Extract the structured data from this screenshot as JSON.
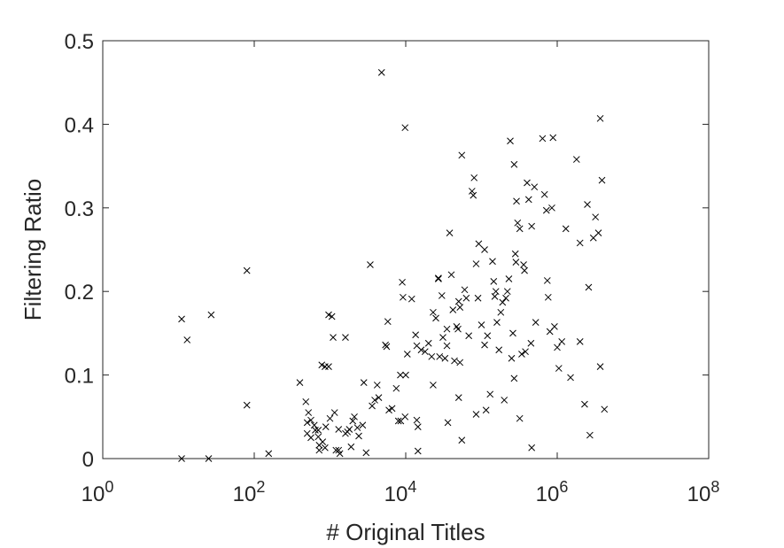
{
  "chart_data": {
    "type": "scatter",
    "title": "",
    "xlabel": "# Original Titles",
    "ylabel": "Filtering Ratio",
    "xscale": "log",
    "xlim": [
      1,
      100000000
    ],
    "ylim": [
      0,
      0.5
    ],
    "xticks": [
      {
        "value": 1,
        "base": "10",
        "exp": "0"
      },
      {
        "value": 100,
        "base": "10",
        "exp": "2"
      },
      {
        "value": 10000,
        "base": "10",
        "exp": "4"
      },
      {
        "value": 1000000,
        "base": "10",
        "exp": "6"
      },
      {
        "value": 100000000,
        "base": "10",
        "exp": "8"
      }
    ],
    "yticks": [
      {
        "value": 0,
        "label": "0"
      },
      {
        "value": 0.1,
        "label": "0.1"
      },
      {
        "value": 0.2,
        "label": "0.2"
      },
      {
        "value": 0.3,
        "label": "0.3"
      },
      {
        "value": 0.4,
        "label": "0.4"
      },
      {
        "value": 0.5,
        "label": "0.5"
      }
    ],
    "grid": false,
    "marker": "x",
    "marker_color": "#000000",
    "points": [
      [
        11,
        0.167
      ],
      [
        13,
        0.142
      ],
      [
        11,
        0.0
      ],
      [
        27,
        0.172
      ],
      [
        25,
        0.0
      ],
      [
        80,
        0.225
      ],
      [
        80,
        0.064
      ],
      [
        155,
        0.006
      ],
      [
        400,
        0.091
      ],
      [
        480,
        0.068
      ],
      [
        520,
        0.055
      ],
      [
        500,
        0.043
      ],
      [
        560,
        0.046
      ],
      [
        620,
        0.04
      ],
      [
        500,
        0.03
      ],
      [
        560,
        0.025
      ],
      [
        640,
        0.034
      ],
      [
        700,
        0.034
      ],
      [
        700,
        0.026
      ],
      [
        720,
        0.016
      ],
      [
        720,
        0.01
      ],
      [
        800,
        0.02
      ],
      [
        860,
        0.013
      ],
      [
        880,
        0.038
      ],
      [
        780,
        0.112
      ],
      [
        860,
        0.11
      ],
      [
        960,
        0.11
      ],
      [
        960,
        0.172
      ],
      [
        1060,
        0.17
      ],
      [
        1100,
        0.145
      ],
      [
        1000,
        0.048
      ],
      [
        1150,
        0.055
      ],
      [
        1300,
        0.035
      ],
      [
        1200,
        0.01
      ],
      [
        1300,
        0.01
      ],
      [
        1350,
        0.006
      ],
      [
        1600,
        0.145
      ],
      [
        1600,
        0.03
      ],
      [
        1700,
        0.032
      ],
      [
        1800,
        0.035
      ],
      [
        2000,
        0.045
      ],
      [
        2100,
        0.05
      ],
      [
        1900,
        0.014
      ],
      [
        2300,
        0.037
      ],
      [
        2400,
        0.027
      ],
      [
        2700,
        0.04
      ],
      [
        2800,
        0.091
      ],
      [
        3000,
        0.007
      ],
      [
        3400,
        0.232
      ],
      [
        3600,
        0.063
      ],
      [
        3900,
        0.07
      ],
      [
        4200,
        0.088
      ],
      [
        4400,
        0.073
      ],
      [
        4800,
        0.462
      ],
      [
        5400,
        0.136
      ],
      [
        5800,
        0.164
      ],
      [
        5600,
        0.134
      ],
      [
        6000,
        0.058
      ],
      [
        6600,
        0.06
      ],
      [
        7500,
        0.084
      ],
      [
        8000,
        0.045
      ],
      [
        8600,
        0.045
      ],
      [
        8500,
        0.1
      ],
      [
        9000,
        0.211
      ],
      [
        9200,
        0.193
      ],
      [
        9800,
        0.396
      ],
      [
        9800,
        0.05
      ],
      [
        10000,
        0.1
      ],
      [
        10500,
        0.125
      ],
      [
        12000,
        0.191
      ],
      [
        13500,
        0.148
      ],
      [
        14000,
        0.135
      ],
      [
        14000,
        0.046
      ],
      [
        14500,
        0.038
      ],
      [
        14500,
        0.009
      ],
      [
        16000,
        0.13
      ],
      [
        18000,
        0.128
      ],
      [
        20000,
        0.138
      ],
      [
        22000,
        0.122
      ],
      [
        23000,
        0.175
      ],
      [
        23000,
        0.088
      ],
      [
        25000,
        0.168
      ],
      [
        27000,
        0.215
      ],
      [
        27000,
        0.216
      ],
      [
        28000,
        0.122
      ],
      [
        30000,
        0.195
      ],
      [
        31000,
        0.145
      ],
      [
        33000,
        0.12
      ],
      [
        35000,
        0.155
      ],
      [
        35000,
        0.135
      ],
      [
        36000,
        0.043
      ],
      [
        38000,
        0.27
      ],
      [
        40000,
        0.22
      ],
      [
        42000,
        0.178
      ],
      [
        44000,
        0.117
      ],
      [
        47000,
        0.158
      ],
      [
        49000,
        0.155
      ],
      [
        50000,
        0.188
      ],
      [
        50000,
        0.073
      ],
      [
        52000,
        0.181
      ],
      [
        52000,
        0.115
      ],
      [
        55000,
        0.022
      ],
      [
        55000,
        0.363
      ],
      [
        60000,
        0.202
      ],
      [
        63000,
        0.192
      ],
      [
        68000,
        0.147
      ],
      [
        75000,
        0.32
      ],
      [
        78000,
        0.315
      ],
      [
        80000,
        0.336
      ],
      [
        85000,
        0.233
      ],
      [
        85000,
        0.053
      ],
      [
        90000,
        0.192
      ],
      [
        92000,
        0.257
      ],
      [
        100000,
        0.16
      ],
      [
        110000,
        0.25
      ],
      [
        110000,
        0.136
      ],
      [
        115000,
        0.058
      ],
      [
        120000,
        0.147
      ],
      [
        130000,
        0.077
      ],
      [
        140000,
        0.236
      ],
      [
        145000,
        0.212
      ],
      [
        150000,
        0.194
      ],
      [
        155000,
        0.2
      ],
      [
        160000,
        0.163
      ],
      [
        170000,
        0.13
      ],
      [
        180000,
        0.175
      ],
      [
        190000,
        0.187
      ],
      [
        200000,
        0.07
      ],
      [
        210000,
        0.192
      ],
      [
        220000,
        0.2
      ],
      [
        230000,
        0.215
      ],
      [
        240000,
        0.38
      ],
      [
        250000,
        0.12
      ],
      [
        260000,
        0.15
      ],
      [
        270000,
        0.352
      ],
      [
        270000,
        0.096
      ],
      [
        280000,
        0.245
      ],
      [
        285000,
        0.235
      ],
      [
        290000,
        0.308
      ],
      [
        300000,
        0.282
      ],
      [
        320000,
        0.275
      ],
      [
        320000,
        0.048
      ],
      [
        340000,
        0.125
      ],
      [
        360000,
        0.232
      ],
      [
        370000,
        0.225
      ],
      [
        380000,
        0.128
      ],
      [
        400000,
        0.33
      ],
      [
        420000,
        0.31
      ],
      [
        450000,
        0.138
      ],
      [
        460000,
        0.278
      ],
      [
        460000,
        0.013
      ],
      [
        500000,
        0.325
      ],
      [
        520000,
        0.163
      ],
      [
        640000,
        0.383
      ],
      [
        680000,
        0.316
      ],
      [
        720000,
        0.297
      ],
      [
        740000,
        0.213
      ],
      [
        760000,
        0.193
      ],
      [
        800000,
        0.152
      ],
      [
        850000,
        0.3
      ],
      [
        880000,
        0.384
      ],
      [
        920000,
        0.158
      ],
      [
        1000000,
        0.133
      ],
      [
        1050000,
        0.108
      ],
      [
        1150000,
        0.14
      ],
      [
        1300000,
        0.275
      ],
      [
        1500000,
        0.097
      ],
      [
        1800000,
        0.358
      ],
      [
        2000000,
        0.258
      ],
      [
        2000000,
        0.14
      ],
      [
        2300000,
        0.065
      ],
      [
        2500000,
        0.304
      ],
      [
        2600000,
        0.205
      ],
      [
        2700000,
        0.028
      ],
      [
        3000000,
        0.264
      ],
      [
        3200000,
        0.289
      ],
      [
        3500000,
        0.27
      ],
      [
        3700000,
        0.407
      ],
      [
        3700000,
        0.11
      ],
      [
        3900000,
        0.333
      ],
      [
        4200000,
        0.059
      ]
    ]
  }
}
